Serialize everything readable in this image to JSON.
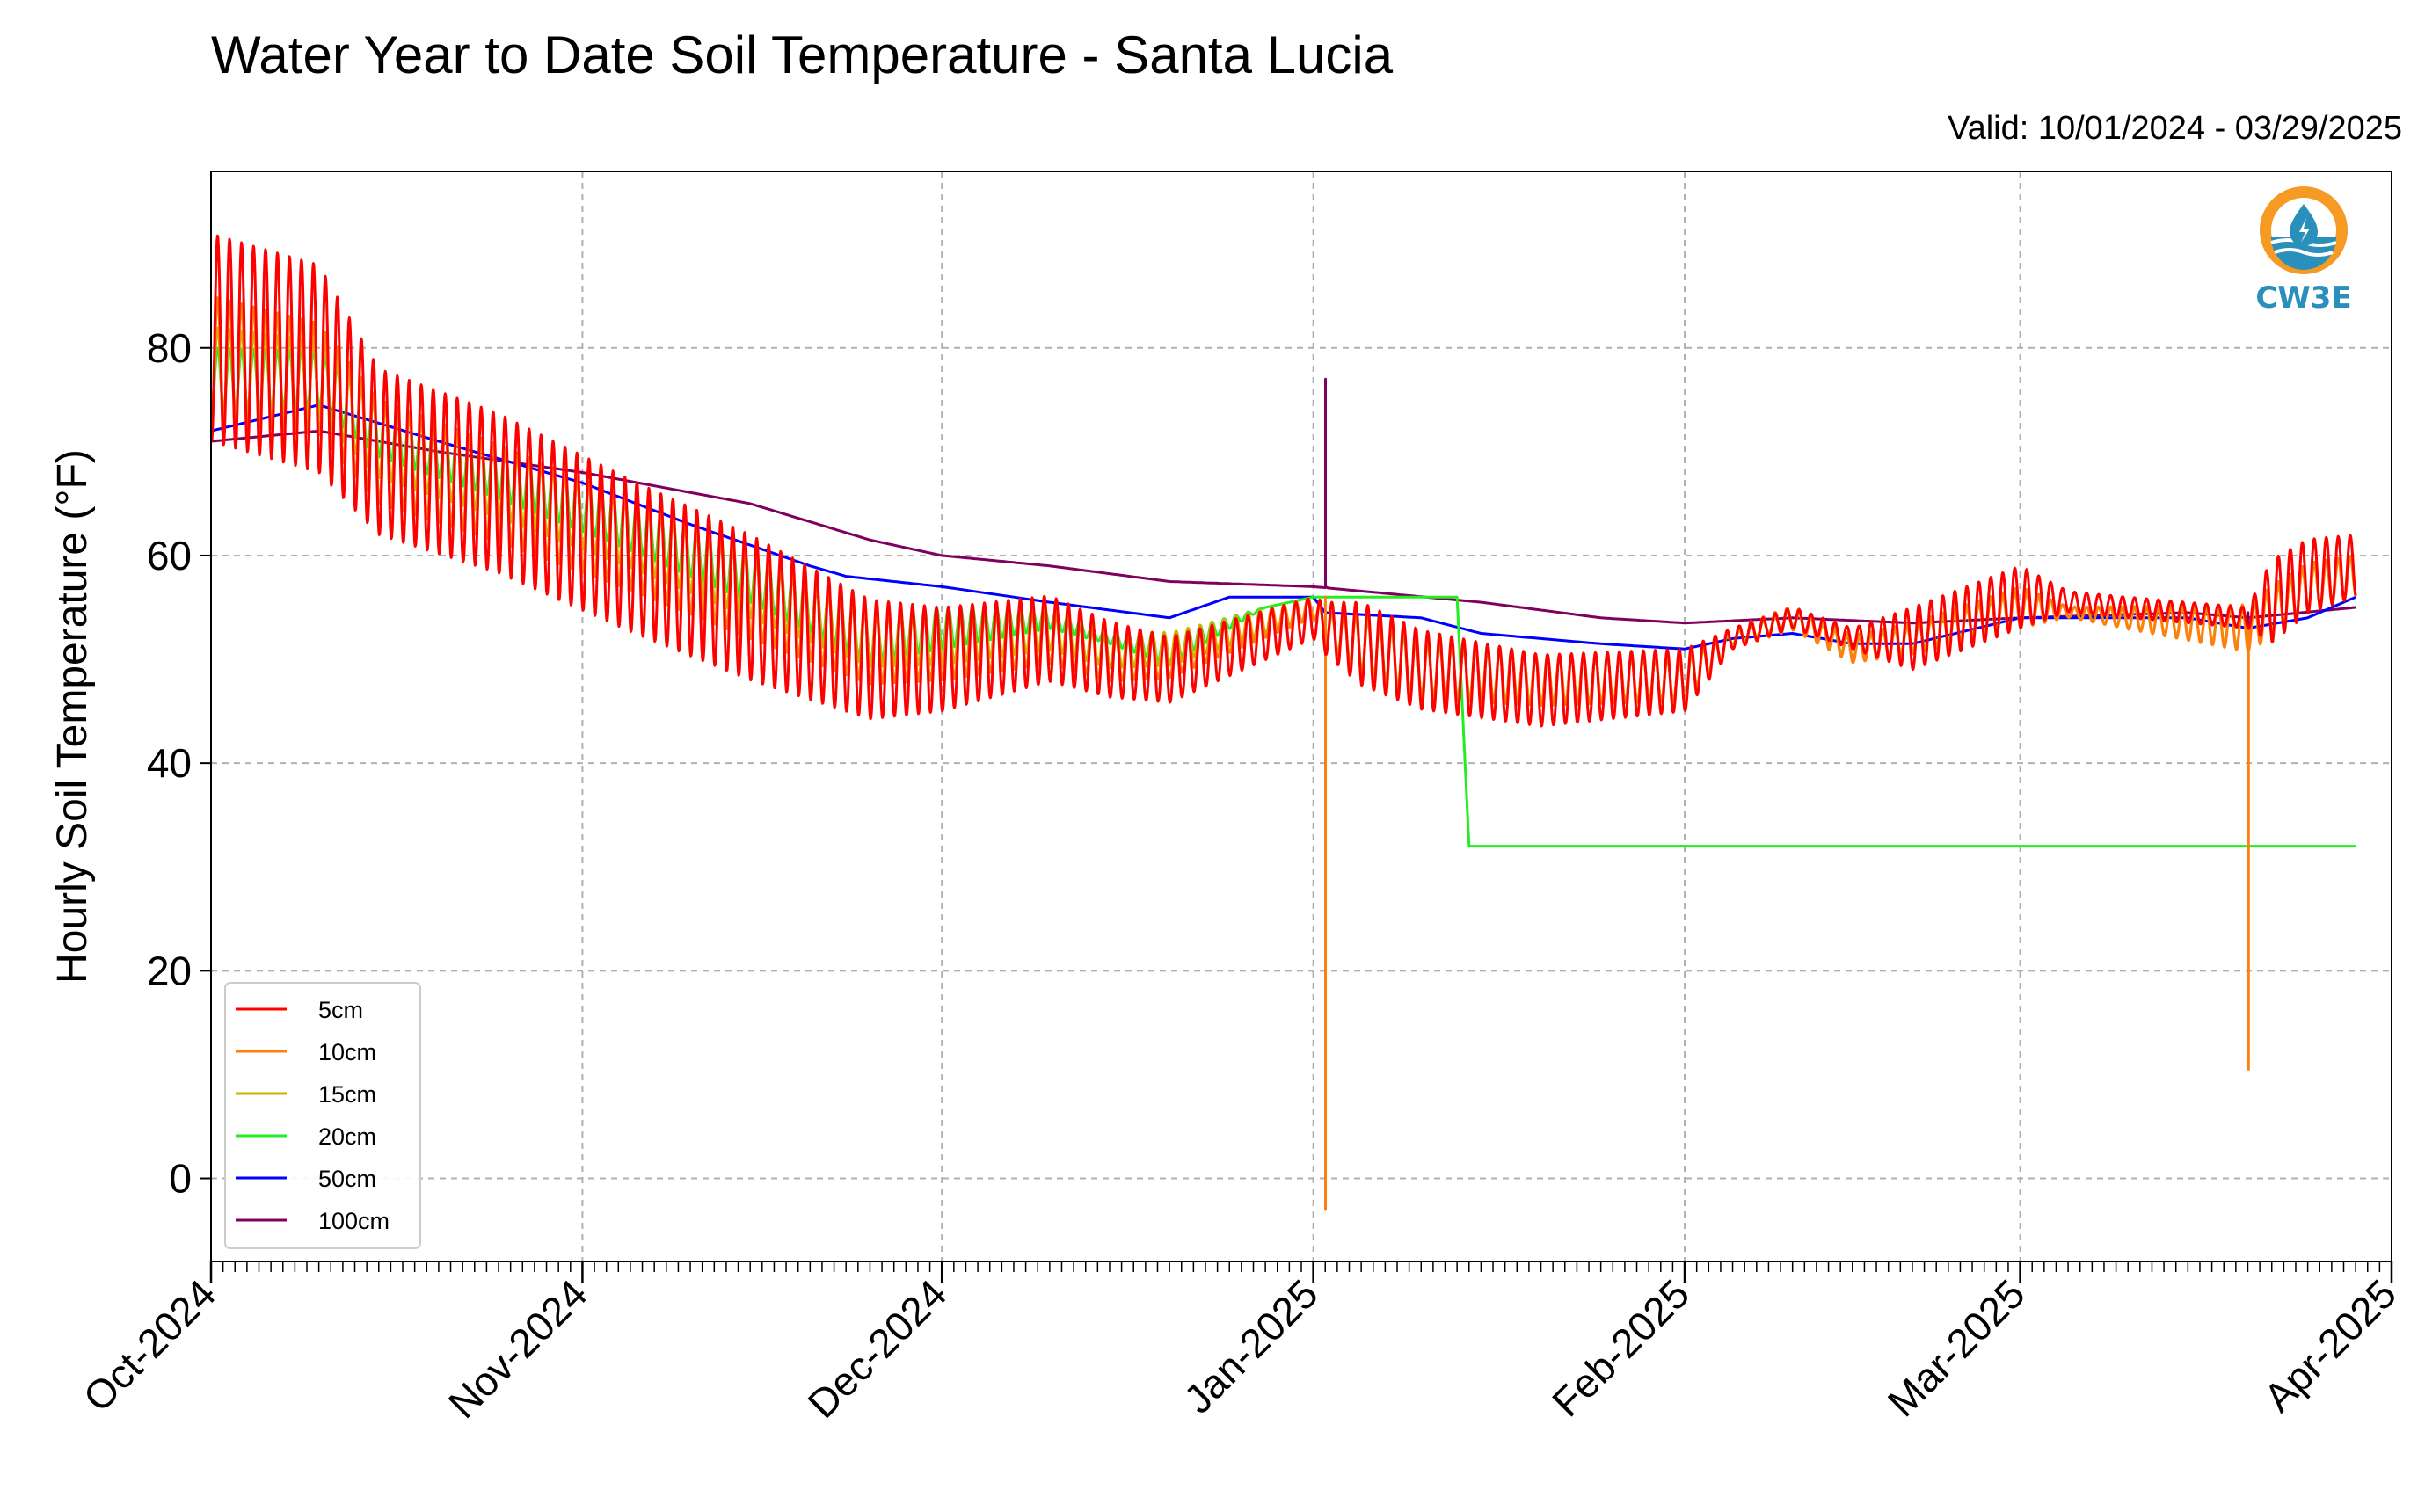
{
  "header": {
    "title": "Water Year to Date Soil Temperature - Santa Lucia",
    "valid": "Valid: 10/01/2024 - 03/29/2025"
  },
  "logo": {
    "text": "CW3E",
    "icon": "cw3e-water-drop-logo"
  },
  "colors": {
    "5cm": "#ff0000",
    "10cm": "#ff7f0e",
    "15cm": "#c8b400",
    "20cm": "#22ee22",
    "50cm": "#0000ff",
    "100cm": "#800060",
    "grid": "#b0b0b0"
  },
  "chart_data": {
    "type": "line",
    "title": "Water Year to Date Soil Temperature - Santa Lucia",
    "ylabel": "Hourly Soil Temperature (°F)",
    "xlabel": "",
    "x_unit": "date",
    "xlim": [
      "2024-10-01",
      "2025-04-01"
    ],
    "ylim": [
      -8,
      97
    ],
    "yticks": [
      0,
      20,
      40,
      60,
      80
    ],
    "xticks": [
      {
        "date": "2024-10-01",
        "label": "Oct-2024"
      },
      {
        "date": "2024-11-01",
        "label": "Nov-2024"
      },
      {
        "date": "2024-12-01",
        "label": "Dec-2024"
      },
      {
        "date": "2025-01-01",
        "label": "Jan-2025"
      },
      {
        "date": "2025-02-01",
        "label": "Feb-2025"
      },
      {
        "date": "2025-03-01",
        "label": "Mar-2025"
      },
      {
        "date": "2025-04-01",
        "label": "Apr-2025"
      }
    ],
    "grid": true,
    "legend_position": "lower-left",
    "series": [
      {
        "name": "5cm",
        "color_key": "5cm",
        "diurnal": true,
        "mean": [
          [
            "2024-10-01",
            81
          ],
          [
            "2024-10-10",
            78
          ],
          [
            "2024-10-15",
            70
          ],
          [
            "2024-10-25",
            66
          ],
          [
            "2024-11-05",
            60
          ],
          [
            "2024-11-15",
            55
          ],
          [
            "2024-11-25",
            50
          ],
          [
            "2024-12-01",
            50
          ],
          [
            "2024-12-10",
            52
          ],
          [
            "2024-12-15",
            50
          ],
          [
            "2024-12-20",
            49
          ],
          [
            "2025-01-01",
            54
          ],
          [
            "2025-01-02",
            53
          ],
          [
            "2025-01-10",
            49
          ],
          [
            "2025-01-20",
            47
          ],
          [
            "2025-02-01",
            48
          ],
          [
            "2025-02-05",
            52
          ],
          [
            "2025-02-10",
            54
          ],
          [
            "2025-02-15",
            52
          ],
          [
            "2025-02-20",
            52
          ],
          [
            "2025-03-01",
            56
          ],
          [
            "2025-03-10",
            55
          ],
          [
            "2025-03-20",
            54
          ],
          [
            "2025-03-25",
            58
          ],
          [
            "2025-03-29",
            59
          ]
        ],
        "amp": [
          [
            "2024-10-01",
            10
          ],
          [
            "2024-10-10",
            10
          ],
          [
            "2024-10-15",
            8
          ],
          [
            "2024-11-15",
            7
          ],
          [
            "2024-12-01",
            5
          ],
          [
            "2025-01-01",
            2
          ],
          [
            "2025-01-05",
            4
          ],
          [
            "2025-02-01",
            3
          ],
          [
            "2025-02-05",
            1
          ],
          [
            "2025-02-15",
            1
          ],
          [
            "2025-02-20",
            3
          ],
          [
            "2025-03-01",
            3
          ],
          [
            "2025-03-05",
            1
          ],
          [
            "2025-03-20",
            1
          ],
          [
            "2025-03-22",
            4
          ],
          [
            "2025-03-29",
            3
          ]
        ]
      },
      {
        "name": "10cm",
        "color_key": "10cm",
        "diurnal": true,
        "mean": [
          [
            "2024-10-01",
            79
          ],
          [
            "2024-10-10",
            77
          ],
          [
            "2024-10-15",
            70
          ],
          [
            "2024-10-25",
            66
          ],
          [
            "2024-11-05",
            61
          ],
          [
            "2024-11-15",
            56
          ],
          [
            "2024-11-25",
            51
          ],
          [
            "2024-12-01",
            51
          ],
          [
            "2024-12-10",
            52
          ],
          [
            "2024-12-15",
            50
          ],
          [
            "2024-12-20",
            50
          ],
          [
            "2025-01-01",
            55
          ],
          [
            "2025-01-02",
            53
          ],
          [
            "2025-01-10",
            49
          ],
          [
            "2025-01-20",
            48
          ],
          [
            "2025-02-01",
            48
          ],
          [
            "2025-02-05",
            52
          ],
          [
            "2025-02-10",
            54
          ],
          [
            "2025-02-15",
            51
          ],
          [
            "2025-02-20",
            52
          ],
          [
            "2025-03-01",
            55
          ],
          [
            "2025-03-10",
            54
          ],
          [
            "2025-03-20",
            53
          ],
          [
            "2025-03-25",
            57
          ],
          [
            "2025-03-29",
            58
          ]
        ],
        "amp": [
          [
            "2024-10-01",
            6
          ],
          [
            "2024-10-15",
            5
          ],
          [
            "2024-11-15",
            4
          ],
          [
            "2024-12-01",
            3
          ],
          [
            "2025-01-01",
            1
          ],
          [
            "2025-01-05",
            3
          ],
          [
            "2025-02-01",
            2
          ],
          [
            "2025-02-05",
            1
          ],
          [
            "2025-02-20",
            1.5
          ],
          [
            "2025-03-01",
            2
          ],
          [
            "2025-03-05",
            0.5
          ],
          [
            "2025-03-22",
            2.5
          ],
          [
            "2025-03-29",
            2
          ]
        ]
      },
      {
        "name": "15cm",
        "color_key": "15cm",
        "diurnal": true,
        "mean": [
          [
            "2024-10-01",
            78
          ],
          [
            "2024-10-10",
            77
          ],
          [
            "2024-10-15",
            71
          ],
          [
            "2024-10-25",
            67
          ],
          [
            "2024-11-05",
            62
          ],
          [
            "2024-11-15",
            57
          ],
          [
            "2024-11-25",
            52
          ],
          [
            "2024-12-01",
            52
          ],
          [
            "2024-12-10",
            53
          ],
          [
            "2024-12-15",
            51
          ],
          [
            "2024-12-20",
            51
          ],
          [
            "2025-01-01",
            55
          ],
          [
            "2025-01-02",
            53
          ],
          [
            "2025-01-10",
            49
          ],
          [
            "2025-01-20",
            48
          ],
          [
            "2025-02-01",
            48
          ],
          [
            "2025-02-05",
            52
          ],
          [
            "2025-02-10",
            54
          ],
          [
            "2025-02-15",
            51
          ],
          [
            "2025-02-20",
            52
          ],
          [
            "2025-03-01",
            55
          ],
          [
            "2025-03-10",
            54
          ],
          [
            "2025-03-20",
            53
          ],
          [
            "2025-03-25",
            57
          ],
          [
            "2025-03-29",
            58
          ]
        ],
        "amp": [
          [
            "2024-10-01",
            4
          ],
          [
            "2024-10-15",
            3.5
          ],
          [
            "2024-11-15",
            3
          ],
          [
            "2024-12-01",
            2.5
          ],
          [
            "2025-01-01",
            1
          ],
          [
            "2025-01-05",
            2.5
          ],
          [
            "2025-02-01",
            2
          ],
          [
            "2025-02-05",
            0.5
          ],
          [
            "2025-03-01",
            1.5
          ],
          [
            "2025-03-05",
            0.5
          ],
          [
            "2025-03-22",
            2
          ],
          [
            "2025-03-29",
            2
          ]
        ]
      },
      {
        "name": "20cm",
        "color_key": "20cm",
        "diurnal": true,
        "mean": [
          [
            "2024-10-01",
            77
          ],
          [
            "2024-10-10",
            77
          ],
          [
            "2024-10-15",
            72
          ],
          [
            "2024-10-25",
            68
          ],
          [
            "2024-11-05",
            63
          ],
          [
            "2024-11-15",
            58
          ],
          [
            "2024-11-25",
            52
          ],
          [
            "2024-12-01",
            53
          ],
          [
            "2024-12-10",
            54
          ],
          [
            "2024-12-15",
            52
          ],
          [
            "2024-12-20",
            51
          ],
          [
            "2024-12-28",
            55
          ],
          [
            "2025-01-01",
            56
          ],
          [
            "2025-01-13",
            56
          ],
          [
            "2025-01-14",
            32
          ],
          [
            "2025-03-29",
            32
          ]
        ],
        "amp": [
          [
            "2024-10-01",
            3
          ],
          [
            "2024-10-15",
            2.5
          ],
          [
            "2024-11-15",
            2.5
          ],
          [
            "2024-12-01",
            2
          ],
          [
            "2024-12-15",
            0.5
          ],
          [
            "2024-12-20",
            1.5
          ],
          [
            "2024-12-28",
            0
          ],
          [
            "2025-03-29",
            0
          ]
        ]
      },
      {
        "name": "50cm",
        "color_key": "50cm",
        "diurnal": false,
        "mean": [
          [
            "2024-10-01",
            72
          ],
          [
            "2024-10-10",
            74.5
          ],
          [
            "2024-10-20",
            71
          ],
          [
            "2024-11-01",
            67
          ],
          [
            "2024-11-10",
            63
          ],
          [
            "2024-11-20",
            59
          ],
          [
            "2024-11-23",
            58
          ],
          [
            "2024-12-01",
            57
          ],
          [
            "2024-12-10",
            55.5
          ],
          [
            "2024-12-20",
            54
          ],
          [
            "2024-12-25",
            56
          ],
          [
            "2025-01-01",
            56
          ],
          [
            "2025-01-02",
            54.5
          ],
          [
            "2025-01-10",
            54
          ],
          [
            "2025-01-15",
            52.5
          ],
          [
            "2025-01-25",
            51.5
          ],
          [
            "2025-02-01",
            51
          ],
          [
            "2025-02-05",
            52
          ],
          [
            "2025-02-10",
            52.5
          ],
          [
            "2025-02-15",
            51.5
          ],
          [
            "2025-02-20",
            51.5
          ],
          [
            "2025-03-01",
            54
          ],
          [
            "2025-03-15",
            54
          ],
          [
            "2025-03-20",
            53
          ],
          [
            "2025-03-25",
            54
          ],
          [
            "2025-03-29",
            56
          ]
        ]
      },
      {
        "name": "100cm",
        "color_key": "100cm",
        "diurnal": false,
        "mean": [
          [
            "2024-10-01",
            71
          ],
          [
            "2024-10-10",
            72
          ],
          [
            "2024-10-20",
            70
          ],
          [
            "2024-11-01",
            68
          ],
          [
            "2024-11-15",
            65
          ],
          [
            "2024-11-25",
            61.5
          ],
          [
            "2024-12-01",
            60
          ],
          [
            "2024-12-10",
            59
          ],
          [
            "2024-12-20",
            57.5
          ],
          [
            "2025-01-01",
            57
          ],
          [
            "2025-01-15",
            55.5
          ],
          [
            "2025-01-25",
            54
          ],
          [
            "2025-02-01",
            53.5
          ],
          [
            "2025-02-10",
            54
          ],
          [
            "2025-02-20",
            53.5
          ],
          [
            "2025-03-01",
            54
          ],
          [
            "2025-03-15",
            54.5
          ],
          [
            "2025-03-20",
            54
          ],
          [
            "2025-03-29",
            55
          ]
        ]
      }
    ],
    "spikes": [
      {
        "series": "100cm",
        "date": "2025-01-02",
        "values": [
          57,
          77,
          57
        ]
      },
      {
        "series": "50cm",
        "date": "2025-01-02",
        "values": [
          56,
          34,
          54.5
        ]
      },
      {
        "series": "10cm",
        "date": "2025-01-02",
        "values": [
          56,
          -3,
          53
        ]
      },
      {
        "series": "100cm",
        "date": "2025-03-20",
        "values": [
          54.5,
          12,
          28,
          54
        ]
      },
      {
        "series": "10cm",
        "date": "2025-03-20",
        "values": [
          52.5,
          10.5,
          26,
          53
        ]
      }
    ]
  }
}
